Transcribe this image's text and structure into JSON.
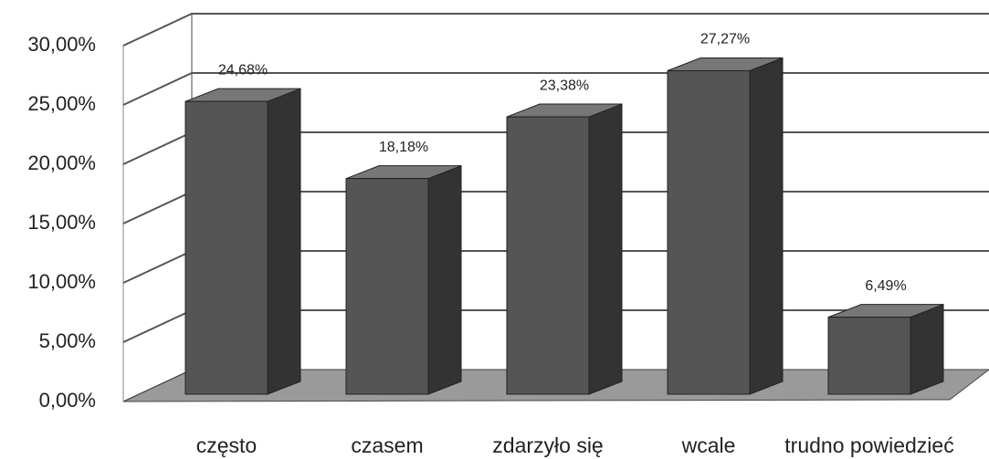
{
  "chart_data": {
    "type": "bar",
    "categories": [
      "często",
      "czasem",
      "zdarzyło się",
      "wcale",
      "trudno powiedzieć"
    ],
    "values": [
      24.68,
      18.18,
      23.38,
      27.27,
      6.49
    ],
    "value_labels": [
      "24,68%",
      "18,18%",
      "23,38%",
      "27,27%",
      "6,49%"
    ],
    "color": "#555555",
    "ylim": [
      0,
      30
    ],
    "yticks": [
      {
        "value": 0,
        "label": "0,00%"
      },
      {
        "value": 5,
        "label": "5,00%"
      },
      {
        "value": 10,
        "label": "10,00%"
      },
      {
        "value": 15,
        "label": "15,00%"
      },
      {
        "value": 20,
        "label": "20,00%"
      },
      {
        "value": 25,
        "label": "25,00%"
      },
      {
        "value": 30,
        "label": "30,00%"
      }
    ],
    "grid": true
  }
}
